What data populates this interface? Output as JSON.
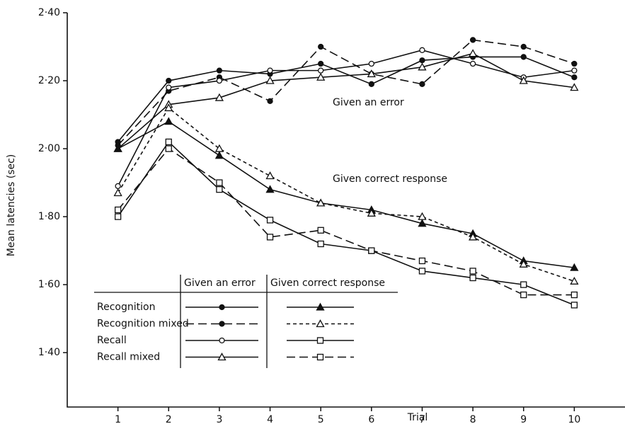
{
  "chart_data": {
    "type": "line",
    "xlabel": "Trial",
    "ylabel": "Mean latencies (sec)",
    "x": [
      1,
      2,
      3,
      4,
      5,
      6,
      7,
      8,
      9,
      10
    ],
    "xlim": [
      0,
      11
    ],
    "xticks": [
      1,
      2,
      3,
      4,
      5,
      6,
      7,
      8,
      9,
      10
    ],
    "ylim": [
      1.24,
      2.4
    ],
    "yticks": [
      {
        "value": 1.4,
        "label": "1·40"
      },
      {
        "value": 1.6,
        "label": "1·60"
      },
      {
        "value": 1.8,
        "label": "1·80"
      },
      {
        "value": 2.0,
        "label": "2·00"
      },
      {
        "value": 2.2,
        "label": "2·20"
      },
      {
        "value": 2.4,
        "label": "2·40"
      }
    ],
    "color": "#111111",
    "series_names": [
      "Recognition",
      "Recognition mixed",
      "Recall",
      "Recall mixed"
    ],
    "groups": [
      {
        "name": "Given an error",
        "series": [
          {
            "style": "solid",
            "marker": "circle-filled",
            "values": [
              2.02,
              2.2,
              2.23,
              2.22,
              2.25,
              2.19,
              2.26,
              2.27,
              2.27,
              2.21
            ]
          },
          {
            "style": "dashed",
            "marker": "circle-filled",
            "values": [
              2.01,
              2.17,
              2.21,
              2.14,
              2.3,
              2.22,
              2.19,
              2.32,
              2.3,
              2.25
            ]
          },
          {
            "style": "solid",
            "marker": "circle-open",
            "values": [
              1.89,
              2.18,
              2.2,
              2.23,
              2.23,
              2.25,
              2.29,
              2.25,
              2.21,
              2.23
            ]
          },
          {
            "style": "solid",
            "marker": "triangle-open",
            "values": [
              2.0,
              2.13,
              2.15,
              2.2,
              2.21,
              2.22,
              2.24,
              2.28,
              2.2,
              2.18
            ]
          }
        ]
      },
      {
        "name": "Given correct response",
        "series": [
          {
            "style": "solid",
            "marker": "triangle-filled",
            "values": [
              2.0,
              2.08,
              1.98,
              1.88,
              1.84,
              1.82,
              1.78,
              1.75,
              1.67,
              1.65
            ]
          },
          {
            "style": "dotted",
            "marker": "triangle-open",
            "values": [
              1.87,
              2.12,
              2.0,
              1.92,
              1.84,
              1.81,
              1.8,
              1.74,
              1.66,
              1.61
            ]
          },
          {
            "style": "solid",
            "marker": "square-open",
            "values": [
              1.8,
              2.02,
              1.88,
              1.79,
              1.72,
              1.7,
              1.64,
              1.62,
              1.6,
              1.54
            ]
          },
          {
            "style": "dashed",
            "marker": "square-open",
            "values": [
              1.82,
              2.0,
              1.9,
              1.74,
              1.76,
              1.7,
              1.67,
              1.64,
              1.57,
              1.57
            ]
          }
        ]
      }
    ]
  }
}
